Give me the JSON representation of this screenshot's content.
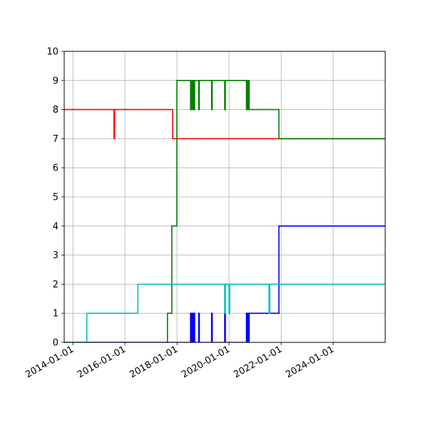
{
  "chart_data": {
    "type": "line",
    "title": "",
    "xlabel": "",
    "ylabel": "",
    "x_axis_type": "date",
    "xlim": [
      "2013-09-01",
      "2025-12-31"
    ],
    "ylim": [
      0,
      10
    ],
    "grid": true,
    "legend": "none",
    "x_tick_labels": [
      "2014-01-01",
      "2016-01-01",
      "2018-01-01",
      "2020-01-01",
      "2022-01-01",
      "2024-01-01"
    ],
    "y_tick_labels": [
      "0",
      "1",
      "2",
      "3",
      "4",
      "5",
      "6",
      "7",
      "8",
      "9",
      "10"
    ],
    "series": [
      {
        "color": "#ff0000",
        "step": "post",
        "points": [
          [
            "2013-09-01",
            8
          ],
          [
            "2015-08-01",
            7
          ],
          [
            "2015-08-10",
            8
          ],
          [
            "2017-11-01",
            7
          ],
          [
            "2025-12-31",
            7
          ]
        ]
      },
      {
        "color": "#008000",
        "step": "post",
        "points": [
          [
            "2013-09-01",
            0
          ],
          [
            "2017-08-20",
            1
          ],
          [
            "2017-10-20",
            4
          ],
          [
            "2017-12-30",
            9
          ],
          [
            "2018-07-10",
            8
          ],
          [
            "2018-07-20",
            9
          ],
          [
            "2018-08-05",
            8
          ],
          [
            "2018-08-15",
            9
          ],
          [
            "2018-08-25",
            8
          ],
          [
            "2018-09-05",
            9
          ],
          [
            "2018-11-01",
            8
          ],
          [
            "2018-11-10",
            9
          ],
          [
            "2019-05-01",
            8
          ],
          [
            "2019-05-10",
            9
          ],
          [
            "2019-11-01",
            8
          ],
          [
            "2019-11-10",
            9
          ],
          [
            "2020-09-01",
            8
          ],
          [
            "2020-09-10",
            9
          ],
          [
            "2020-09-20",
            8
          ],
          [
            "2020-09-30",
            9
          ],
          [
            "2020-10-10",
            8
          ],
          [
            "2021-12-01",
            7
          ],
          [
            "2025-12-31",
            7
          ]
        ]
      },
      {
        "color": "#0000ff",
        "step": "post",
        "points": [
          [
            "2013-09-01",
            0
          ],
          [
            "2018-07-10",
            1
          ],
          [
            "2018-07-20",
            0
          ],
          [
            "2018-08-05",
            1
          ],
          [
            "2018-08-15",
            0
          ],
          [
            "2018-08-25",
            1
          ],
          [
            "2018-09-05",
            0
          ],
          [
            "2018-11-01",
            1
          ],
          [
            "2018-11-10",
            0
          ],
          [
            "2019-05-01",
            1
          ],
          [
            "2019-05-10",
            0
          ],
          [
            "2019-11-01",
            1
          ],
          [
            "2019-11-10",
            0
          ],
          [
            "2020-09-01",
            1
          ],
          [
            "2020-09-10",
            0
          ],
          [
            "2020-09-20",
            1
          ],
          [
            "2020-09-30",
            0
          ],
          [
            "2020-10-10",
            1
          ],
          [
            "2021-12-01",
            4
          ],
          [
            "2025-12-31",
            4
          ]
        ]
      },
      {
        "color": "#00bfbf",
        "step": "post",
        "points": [
          [
            "2013-09-01",
            0
          ],
          [
            "2014-07-15",
            1
          ],
          [
            "2016-07-01",
            2
          ],
          [
            "2019-11-01",
            1
          ],
          [
            "2019-11-10",
            2
          ],
          [
            "2020-01-01",
            1
          ],
          [
            "2020-01-10",
            2
          ],
          [
            "2021-07-15",
            1
          ],
          [
            "2021-07-25",
            2
          ],
          [
            "2025-12-31",
            2
          ]
        ]
      }
    ]
  }
}
